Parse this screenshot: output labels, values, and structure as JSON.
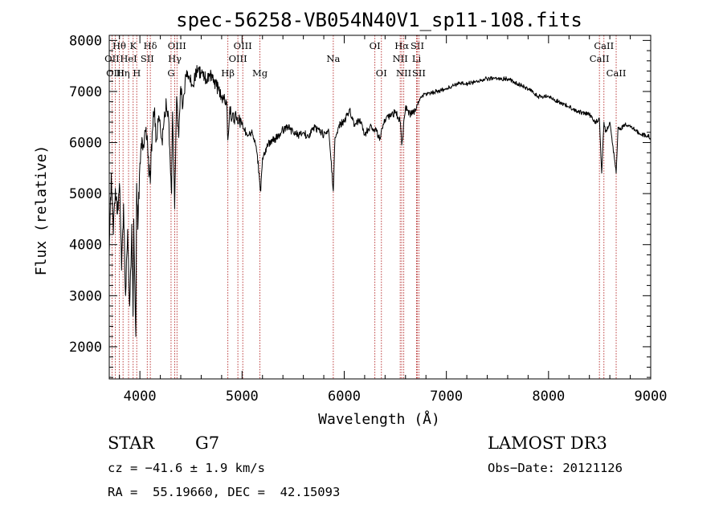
{
  "chart_data": {
    "type": "line",
    "title": "spec-56258-VB054N40V1_sp11-108.fits",
    "xlabel": "Wavelength (Å)",
    "ylabel": "Flux (relative)",
    "xlim": [
      3700,
      9000
    ],
    "ylim": [
      1370,
      8100
    ],
    "xticks": [
      4000,
      5000,
      6000,
      7000,
      8000,
      9000
    ],
    "yticks": [
      2000,
      3000,
      4000,
      5000,
      6000,
      7000,
      8000
    ],
    "xtick_labels": [
      "4000",
      "5000",
      "6000",
      "7000",
      "8000",
      "9000"
    ],
    "ytick_labels": [
      "2000",
      "3000",
      "4000",
      "5000",
      "6000",
      "7000",
      "8000"
    ],
    "grid": false,
    "line_color": "#000000",
    "marker_color": "#b22222",
    "series": [
      {
        "name": "flux",
        "x": [
          3700,
          3720,
          3740,
          3760,
          3780,
          3800,
          3820,
          3840,
          3860,
          3880,
          3900,
          3920,
          3933,
          3940,
          3960,
          3968,
          3980,
          4000,
          4020,
          4040,
          4060,
          4080,
          4102,
          4120,
          4140,
          4160,
          4180,
          4200,
          4220,
          4240,
          4260,
          4280,
          4300,
          4310,
          4320,
          4340,
          4360,
          4380,
          4400,
          4420,
          4450,
          4500,
          4520,
          4550,
          4600,
          4650,
          4700,
          4750,
          4800,
          4850,
          4861,
          4880,
          4900,
          4950,
          5000,
          5050,
          5100,
          5150,
          5170,
          5183,
          5200,
          5250,
          5300,
          5350,
          5400,
          5450,
          5500,
          5550,
          5600,
          5650,
          5700,
          5750,
          5800,
          5850,
          5893,
          5910,
          5950,
          6000,
          6050,
          6100,
          6150,
          6200,
          6250,
          6300,
          6350,
          6400,
          6450,
          6500,
          6550,
          6563,
          6600,
          6650,
          6700,
          6750,
          6800,
          6900,
          7000,
          7100,
          7200,
          7300,
          7400,
          7500,
          7600,
          7700,
          7800,
          7900,
          8000,
          8100,
          8200,
          8300,
          8400,
          8450,
          8498,
          8520,
          8542,
          8560,
          8600,
          8662,
          8680,
          8700,
          8750,
          8800,
          8850,
          8900,
          8950,
          9000
        ],
        "y": [
          3800,
          5400,
          4200,
          5100,
          4600,
          5200,
          3500,
          4800,
          3000,
          4300,
          2800,
          4400,
          2600,
          4500,
          2200,
          5200,
          4300,
          5600,
          6100,
          5900,
          6300,
          5700,
          5200,
          6200,
          6600,
          6050,
          6400,
          6300,
          5950,
          6600,
          6700,
          6500,
          5400,
          5000,
          6600,
          4700,
          6900,
          6100,
          7100,
          6700,
          7300,
          7200,
          7100,
          7400,
          7350,
          7250,
          7300,
          7100,
          6900,
          6800,
          6050,
          6700,
          6450,
          6500,
          6350,
          6150,
          6200,
          5750,
          5300,
          5050,
          5700,
          5950,
          6050,
          6100,
          6250,
          6300,
          6200,
          6150,
          6200,
          6100,
          6300,
          6250,
          6150,
          6200,
          5050,
          6100,
          6350,
          6400,
          6650,
          6350,
          6450,
          6150,
          6300,
          6250,
          6100,
          6450,
          6500,
          6600,
          6400,
          5950,
          6700,
          6550,
          6650,
          6900,
          6950,
          7000,
          7050,
          7150,
          7150,
          7200,
          7250,
          7250,
          7250,
          7150,
          7050,
          6900,
          6900,
          6800,
          6700,
          6600,
          6550,
          6400,
          6450,
          5400,
          6400,
          6200,
          6400,
          5400,
          6300,
          6250,
          6350,
          6300,
          6250,
          6150,
          6150,
          6100
        ]
      }
    ],
    "spectral_lines": [
      {
        "label": "Hθ",
        "wl": 3798,
        "row": 1
      },
      {
        "label": "OII",
        "wl": 3727,
        "row": 2
      },
      {
        "label": "OIII",
        "wl": 3760,
        "row": 3
      },
      {
        "label": "HeI",
        "wl": 3889,
        "row": 2
      },
      {
        "label": "Hη",
        "wl": 3835,
        "row": 3
      },
      {
        "label": "K",
        "wl": 3934,
        "row": 1
      },
      {
        "label": "H",
        "wl": 3969,
        "row": 3
      },
      {
        "label": "SII",
        "wl": 4072,
        "row": 2
      },
      {
        "label": "Hδ",
        "wl": 4102,
        "row": 1
      },
      {
        "label": "OIII",
        "wl": 4363,
        "row": 1
      },
      {
        "label": "Hγ",
        "wl": 4341,
        "row": 2
      },
      {
        "label": "G",
        "wl": 4305,
        "row": 3
      },
      {
        "label": "Hβ",
        "wl": 4861,
        "row": 3
      },
      {
        "label": "OIII",
        "wl": 5007,
        "row": 1
      },
      {
        "label": "OIII",
        "wl": 4959,
        "row": 2
      },
      {
        "label": "Mg",
        "wl": 5175,
        "row": 3
      },
      {
        "label": "Na",
        "wl": 5893,
        "row": 2
      },
      {
        "label": "OI",
        "wl": 6300,
        "row": 1
      },
      {
        "label": "OI",
        "wl": 6364,
        "row": 3
      },
      {
        "label": "Hα",
        "wl": 6563,
        "row": 1
      },
      {
        "label": "NII",
        "wl": 6548,
        "row": 2
      },
      {
        "label": "NII",
        "wl": 6583,
        "row": 3
      },
      {
        "label": "SII",
        "wl": 6716,
        "row": 1
      },
      {
        "label": "Li",
        "wl": 6708,
        "row": 2
      },
      {
        "label": "SII",
        "wl": 6731,
        "row": 3
      },
      {
        "label": "CaII",
        "wl": 8542,
        "row": 1
      },
      {
        "label": "CaII",
        "wl": 8498,
        "row": 2
      },
      {
        "label": "CaII",
        "wl": 8662,
        "row": 3
      }
    ]
  },
  "info": {
    "object_class": "STAR",
    "subclass": "G7",
    "survey": "LAMOST DR3",
    "redshift_text": "cz = −41.6 ± 1.9 km/s",
    "obs_date": "Obs−Date: 20121126",
    "coords": "RA =  55.19660, DEC =  42.15093"
  }
}
